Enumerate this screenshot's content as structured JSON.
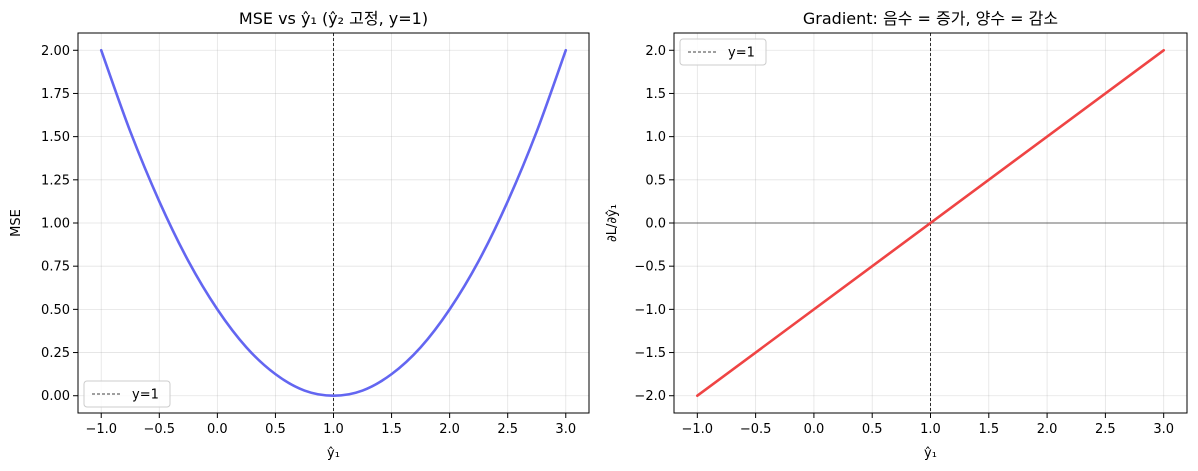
{
  "chart_data": [
    {
      "type": "line",
      "title": "MSE vs ŷ₁  (ŷ₂ 고정, y=1)",
      "xlabel": "ŷ₁",
      "ylabel": "MSE",
      "xlim": [
        -1.2,
        3.2
      ],
      "ylim": [
        -0.1,
        2.1
      ],
      "xticks": [
        -1.0,
        -0.5,
        0.0,
        0.5,
        1.0,
        1.5,
        2.0,
        2.5,
        3.0
      ],
      "xtick_labels": [
        "−1.0",
        "−0.5",
        "0.0",
        "0.5",
        "1.0",
        "1.5",
        "2.0",
        "2.5",
        "3.0"
      ],
      "yticks": [
        0.0,
        0.25,
        0.5,
        0.75,
        1.0,
        1.25,
        1.5,
        1.75,
        2.0
      ],
      "ytick_labels": [
        "0.00",
        "0.25",
        "0.50",
        "0.75",
        "1.00",
        "1.25",
        "1.50",
        "1.75",
        "2.00"
      ],
      "grid": true,
      "series": [
        {
          "color": "#6366f1",
          "x": [
            -1.0,
            -0.75,
            -0.5,
            -0.25,
            0.0,
            0.25,
            0.5,
            0.75,
            1.0,
            1.25,
            1.5,
            1.75,
            2.0,
            2.25,
            2.5,
            2.75,
            3.0
          ],
          "y": [
            2.0,
            1.53,
            1.125,
            0.78,
            0.5,
            0.28,
            0.125,
            0.03,
            0.0,
            0.03,
            0.125,
            0.28,
            0.5,
            0.78,
            1.125,
            1.53,
            2.0
          ]
        }
      ],
      "vline": {
        "x": 1.0,
        "label": "y=1",
        "color": "#000000"
      },
      "legend": {
        "position": "lower-left",
        "entries": [
          "y=1"
        ]
      }
    },
    {
      "type": "line",
      "title": "Gradient: 음수 = 증가, 양수 = 감소",
      "xlabel": "ŷ₁",
      "ylabel": "∂L/∂ŷ₁",
      "xlim": [
        -1.2,
        3.2
      ],
      "ylim": [
        -2.2,
        2.2
      ],
      "xticks": [
        -1.0,
        -0.5,
        0.0,
        0.5,
        1.0,
        1.5,
        2.0,
        2.5,
        3.0
      ],
      "xtick_labels": [
        "−1.0",
        "−0.5",
        "0.0",
        "0.5",
        "1.0",
        "1.5",
        "2.0",
        "2.5",
        "3.0"
      ],
      "yticks": [
        -2.0,
        -1.5,
        -1.0,
        -0.5,
        0.0,
        0.5,
        1.0,
        1.5,
        2.0
      ],
      "ytick_labels": [
        "−2.0",
        "−1.5",
        "−1.0",
        "−0.5",
        "0.0",
        "0.5",
        "1.0",
        "1.5",
        "2.0"
      ],
      "grid": true,
      "series": [
        {
          "color": "#ef4444",
          "x": [
            -1.0,
            3.0
          ],
          "y": [
            -2.0,
            2.0
          ]
        }
      ],
      "hline": {
        "y": 0.0,
        "color": "#000000"
      },
      "vline": {
        "x": 1.0,
        "label": "y=1",
        "color": "#000000"
      },
      "legend": {
        "position": "upper-left",
        "entries": [
          "y=1"
        ]
      }
    }
  ]
}
